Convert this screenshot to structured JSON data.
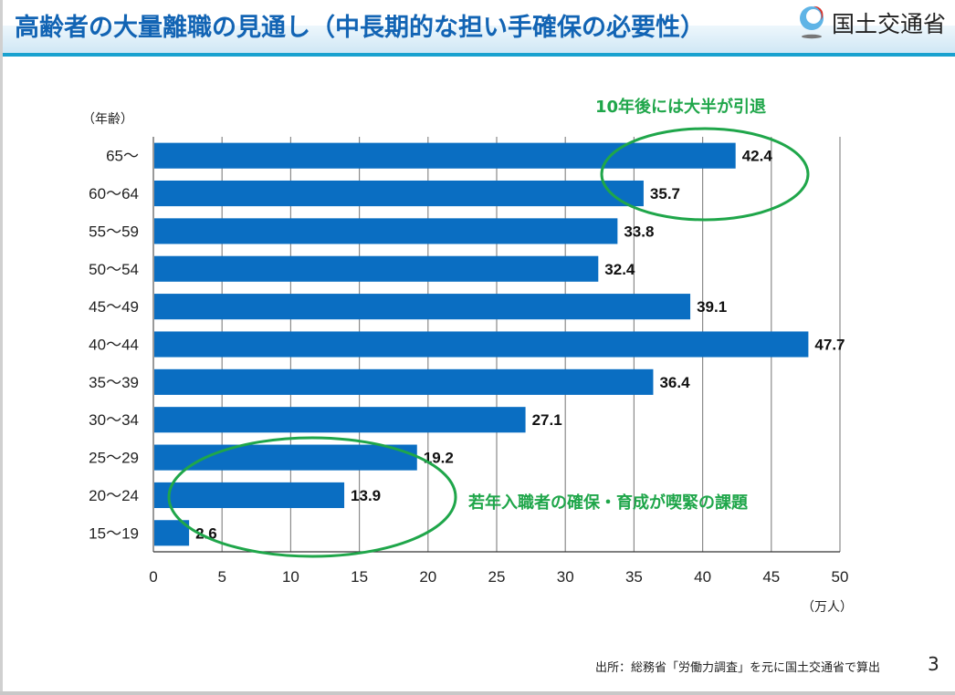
{
  "header": {
    "title": "高齢者の大量離職の見通し（中長期的な担い手確保の必要性）",
    "logo_text": "国土交通省",
    "logo_icon": "mlit-logo-icon"
  },
  "footer": {
    "source": "出所：総務省「労働力調査」を元に国土交通省で算出",
    "page_number": "3"
  },
  "colors": {
    "bar": "#0a6ec2",
    "title": "#1264b4",
    "annotation": "#1fa64a",
    "header_line": "#19a1cf"
  },
  "chart_data": {
    "type": "bar",
    "orientation": "horizontal",
    "title": "",
    "ylabel": "（年齢）",
    "xlabel": "（万人）",
    "categories": [
      "65～",
      "60～64",
      "55～59",
      "50～54",
      "45～49",
      "40～44",
      "35～39",
      "30～34",
      "25～29",
      "20～24",
      "15～19"
    ],
    "values": [
      42.4,
      35.7,
      33.8,
      32.4,
      39.1,
      47.7,
      36.4,
      27.1,
      19.2,
      13.9,
      2.6
    ],
    "value_labels": [
      "42.4",
      "35.7",
      "33.8",
      "32.4",
      "39.1",
      "47.7",
      "36.4",
      "27.1",
      "19.2",
      "13.9",
      "2.6"
    ],
    "xlim": [
      0,
      50
    ],
    "xticks": [
      0,
      5,
      10,
      15,
      20,
      25,
      30,
      35,
      40,
      45,
      50
    ],
    "xtick_labels": [
      "0",
      "5",
      "10",
      "15",
      "20",
      "25",
      "30",
      "35",
      "40",
      "45",
      "50"
    ],
    "grid": "vertical",
    "annotations": [
      {
        "text": "10年後には大半が引退",
        "highlights": [
          "65～",
          "60～64"
        ]
      },
      {
        "text": "若年入職者の確保・育成が喫緊の課題",
        "highlights": [
          "25～29",
          "20～24",
          "15～19"
        ]
      }
    ]
  }
}
